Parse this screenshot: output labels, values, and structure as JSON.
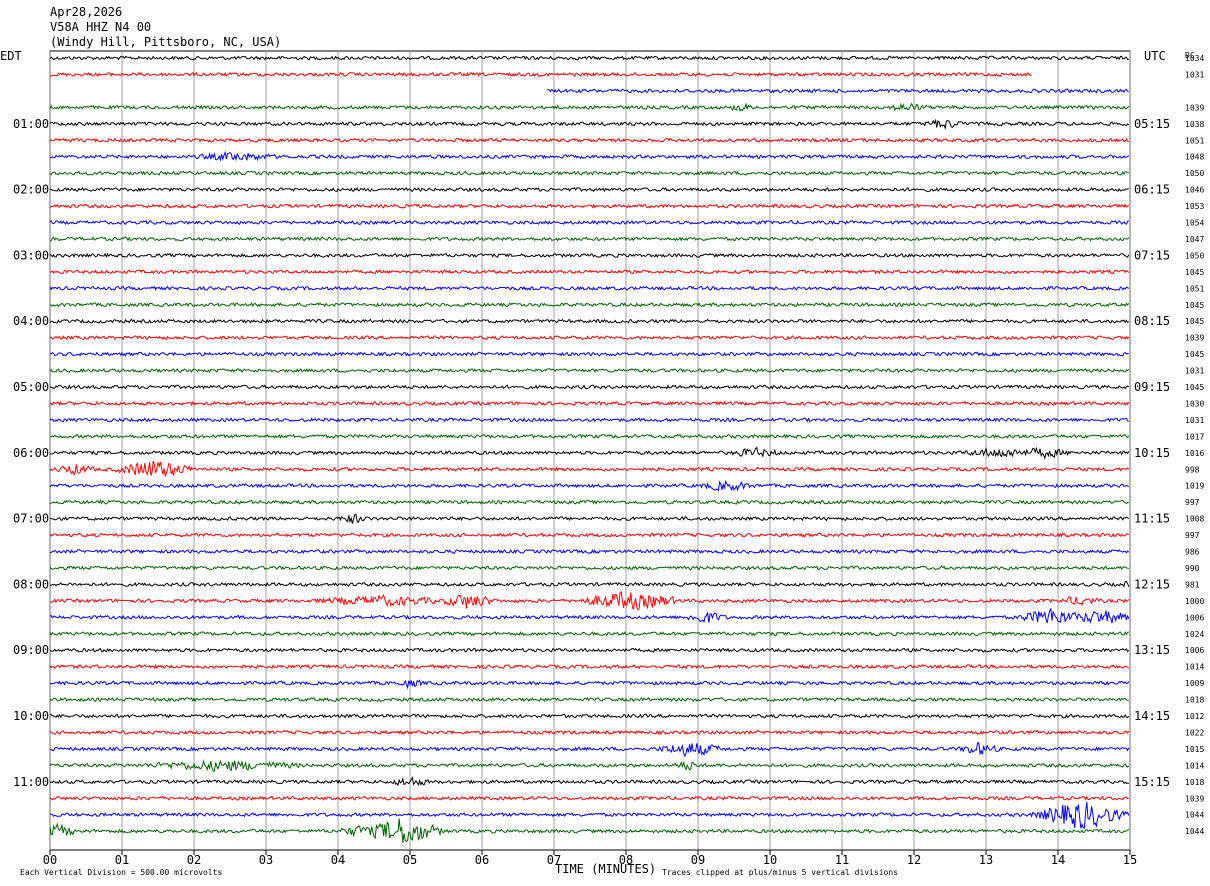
{
  "header": {
    "date": "Apr28,2026",
    "station": "V58A HHZ N4 00",
    "location": "(Windy Hill, Pittsboro, NC, USA)"
  },
  "chart_data": {
    "type": "line",
    "title": "",
    "left_timezone": "EDT",
    "right_timezone": "UTC",
    "right_column_header": "DC",
    "xlabel": "TIME (MINUTES)",
    "xlim": [
      0,
      15
    ],
    "x_ticks": [
      "00",
      "01",
      "02",
      "03",
      "04",
      "05",
      "06",
      "07",
      "08",
      "09",
      "10",
      "11",
      "12",
      "13",
      "14",
      "15"
    ],
    "row_minutes": 15,
    "colors": [
      "#000000",
      "#ff0000",
      "#0000ff",
      "#006400"
    ],
    "edt_labels": [
      {
        "row": 4,
        "text": "01:00"
      },
      {
        "row": 8,
        "text": "02:00"
      },
      {
        "row": 12,
        "text": "03:00"
      },
      {
        "row": 16,
        "text": "04:00"
      },
      {
        "row": 20,
        "text": "05:00"
      },
      {
        "row": 24,
        "text": "06:00"
      },
      {
        "row": 28,
        "text": "07:00"
      },
      {
        "row": 32,
        "text": "08:00"
      },
      {
        "row": 36,
        "text": "09:00"
      },
      {
        "row": 40,
        "text": "10:00"
      },
      {
        "row": 44,
        "text": "11:00"
      }
    ],
    "utc_labels": [
      {
        "row": 4,
        "text": "05:15"
      },
      {
        "row": 8,
        "text": "06:15"
      },
      {
        "row": 12,
        "text": "07:15"
      },
      {
        "row": 16,
        "text": "08:15"
      },
      {
        "row": 20,
        "text": "09:15"
      },
      {
        "row": 24,
        "text": "10:15"
      },
      {
        "row": 28,
        "text": "11:15"
      },
      {
        "row": 32,
        "text": "12:15"
      },
      {
        "row": 36,
        "text": "13:15"
      },
      {
        "row": 40,
        "text": "14:15"
      },
      {
        "row": 44,
        "text": "15:15"
      }
    ],
    "dc_offsets": [
      1034,
      1031,
      null,
      1039,
      1038,
      1051,
      1048,
      1050,
      1046,
      1053,
      1054,
      1047,
      1050,
      1045,
      1051,
      1045,
      1045,
      1039,
      1045,
      1031,
      1045,
      1030,
      1031,
      1017,
      1016,
      998,
      1019,
      997,
      1008,
      997,
      986,
      990,
      981,
      1000,
      1006,
      1024,
      1006,
      1014,
      1009,
      1018,
      1012,
      1022,
      1015,
      1014,
      1018,
      1039,
      1044,
      1044
    ],
    "trace_extents": [
      {
        "row": 1,
        "end_minute": 13.65
      },
      {
        "row": 2,
        "start_minute": 6.9
      }
    ],
    "events": [
      {
        "row": 3,
        "minute": 9.6,
        "amplitude": 1.4,
        "duration": 0.15
      },
      {
        "row": 3,
        "minute": 11.9,
        "amplitude": 1.2,
        "duration": 0.3
      },
      {
        "row": 4,
        "minute": 12.4,
        "amplitude": 1.5,
        "duration": 0.3
      },
      {
        "row": 6,
        "minute": 2.6,
        "amplitude": 1.3,
        "duration": 0.6
      },
      {
        "row": 24,
        "minute": 9.8,
        "amplitude": 1.3,
        "duration": 0.4
      },
      {
        "row": 24,
        "minute": 13.2,
        "amplitude": 1.4,
        "duration": 0.6
      },
      {
        "row": 24,
        "minute": 13.8,
        "amplitude": 1.5,
        "duration": 0.4
      },
      {
        "row": 25,
        "minute": 1.45,
        "amplitude": 3.2,
        "duration": 0.6
      },
      {
        "row": 25,
        "minute": 0.35,
        "amplitude": 1.6,
        "duration": 0.3
      },
      {
        "row": 26,
        "minute": 9.4,
        "amplitude": 1.6,
        "duration": 0.4
      },
      {
        "row": 28,
        "minute": 4.2,
        "amplitude": 1.5,
        "duration": 0.2
      },
      {
        "row": 32,
        "minute": 15.0,
        "amplitude": 1.8,
        "duration": 0.1
      },
      {
        "row": 33,
        "minute": 4.6,
        "amplitude": 1.5,
        "duration": 1.0
      },
      {
        "row": 33,
        "minute": 5.8,
        "amplitude": 2.6,
        "duration": 0.4
      },
      {
        "row": 33,
        "minute": 8.0,
        "amplitude": 3.2,
        "duration": 0.7
      },
      {
        "row": 33,
        "minute": 8.4,
        "amplitude": 2.0,
        "duration": 0.4
      },
      {
        "row": 33,
        "minute": 14.3,
        "amplitude": 1.4,
        "duration": 0.3
      },
      {
        "row": 34,
        "minute": 9.1,
        "amplitude": 2.0,
        "duration": 0.3
      },
      {
        "row": 34,
        "minute": 13.9,
        "amplitude": 3.0,
        "duration": 0.5
      },
      {
        "row": 34,
        "minute": 14.6,
        "amplitude": 2.2,
        "duration": 0.6
      },
      {
        "row": 38,
        "minute": 5.0,
        "amplitude": 1.3,
        "duration": 0.2
      },
      {
        "row": 42,
        "minute": 8.9,
        "amplitude": 2.4,
        "duration": 0.5
      },
      {
        "row": 42,
        "minute": 12.9,
        "amplitude": 2.0,
        "duration": 0.3
      },
      {
        "row": 43,
        "minute": 2.4,
        "amplitude": 1.6,
        "duration": 1.2
      },
      {
        "row": 43,
        "minute": 8.85,
        "amplitude": 1.5,
        "duration": 0.2
      },
      {
        "row": 44,
        "minute": 5.0,
        "amplitude": 1.4,
        "duration": 0.3
      },
      {
        "row": 46,
        "minute": 14.3,
        "amplitude": 5.0,
        "duration": 0.7
      },
      {
        "row": 46,
        "minute": 14.0,
        "amplitude": 1.8,
        "duration": 0.4
      },
      {
        "row": 47,
        "minute": 4.9,
        "amplitude": 5.0,
        "duration": 0.6
      },
      {
        "row": 47,
        "minute": 0.1,
        "amplitude": 2.0,
        "duration": 0.3
      },
      {
        "row": 47,
        "minute": 4.3,
        "amplitude": 1.6,
        "duration": 0.4
      }
    ]
  },
  "footer": {
    "scale_note": "Each Vertical Division =  500.00 microvolts",
    "clip_note": "Traces clipped at plus/minus 5 vertical divisions"
  }
}
